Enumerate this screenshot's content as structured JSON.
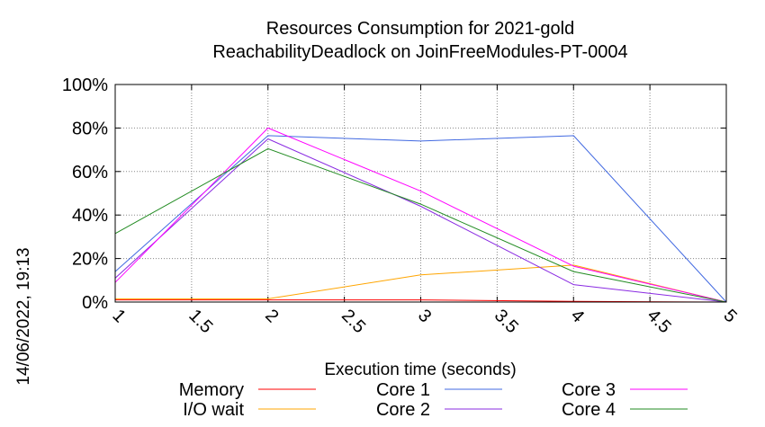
{
  "chart_data": {
    "type": "line",
    "title": "Resources Consumption for 2021-gold",
    "subtitle": "ReachabilityDeadlock on JoinFreeModules-PT-0004",
    "xlabel": "Execution time (seconds)",
    "ylabel": "",
    "side_label": "14/06/2022, 19:13",
    "xlim": [
      1,
      5
    ],
    "ylim": [
      0,
      100
    ],
    "x_ticks": [
      "1",
      "1.5",
      "2",
      "2.5",
      "3",
      "3.5",
      "4",
      "4.5",
      "5"
    ],
    "y_ticks": [
      "0%",
      "20%",
      "40%",
      "60%",
      "80%",
      "100%"
    ],
    "grid": true,
    "legend_position": "bottom",
    "series": [
      {
        "name": "Memory",
        "color": "#ff0000",
        "x": [
          1,
          2,
          3,
          4,
          5
        ],
        "y": [
          1,
          1,
          1,
          0.3,
          0
        ]
      },
      {
        "name": "I/O wait",
        "color": "#ffa500",
        "x": [
          1,
          2,
          3,
          4,
          5
        ],
        "y": [
          1.5,
          1.5,
          12.5,
          17,
          0
        ]
      },
      {
        "name": "Core 1",
        "color": "#4169e1",
        "x": [
          1,
          2,
          3,
          4,
          5
        ],
        "y": [
          14,
          76.5,
          74,
          76.5,
          0
        ]
      },
      {
        "name": "Core 2",
        "color": "#8a2be2",
        "x": [
          1,
          2,
          3,
          4,
          5
        ],
        "y": [
          11,
          75,
          44,
          8,
          0
        ]
      },
      {
        "name": "Core 3",
        "color": "#ff00ff",
        "x": [
          1,
          2,
          3,
          4,
          5
        ],
        "y": [
          9,
          80,
          51,
          16.5,
          0
        ]
      },
      {
        "name": "Core 4",
        "color": "#228b22",
        "x": [
          1,
          2,
          3,
          4,
          5
        ],
        "y": [
          31.5,
          70.5,
          45,
          14,
          0
        ]
      }
    ]
  }
}
